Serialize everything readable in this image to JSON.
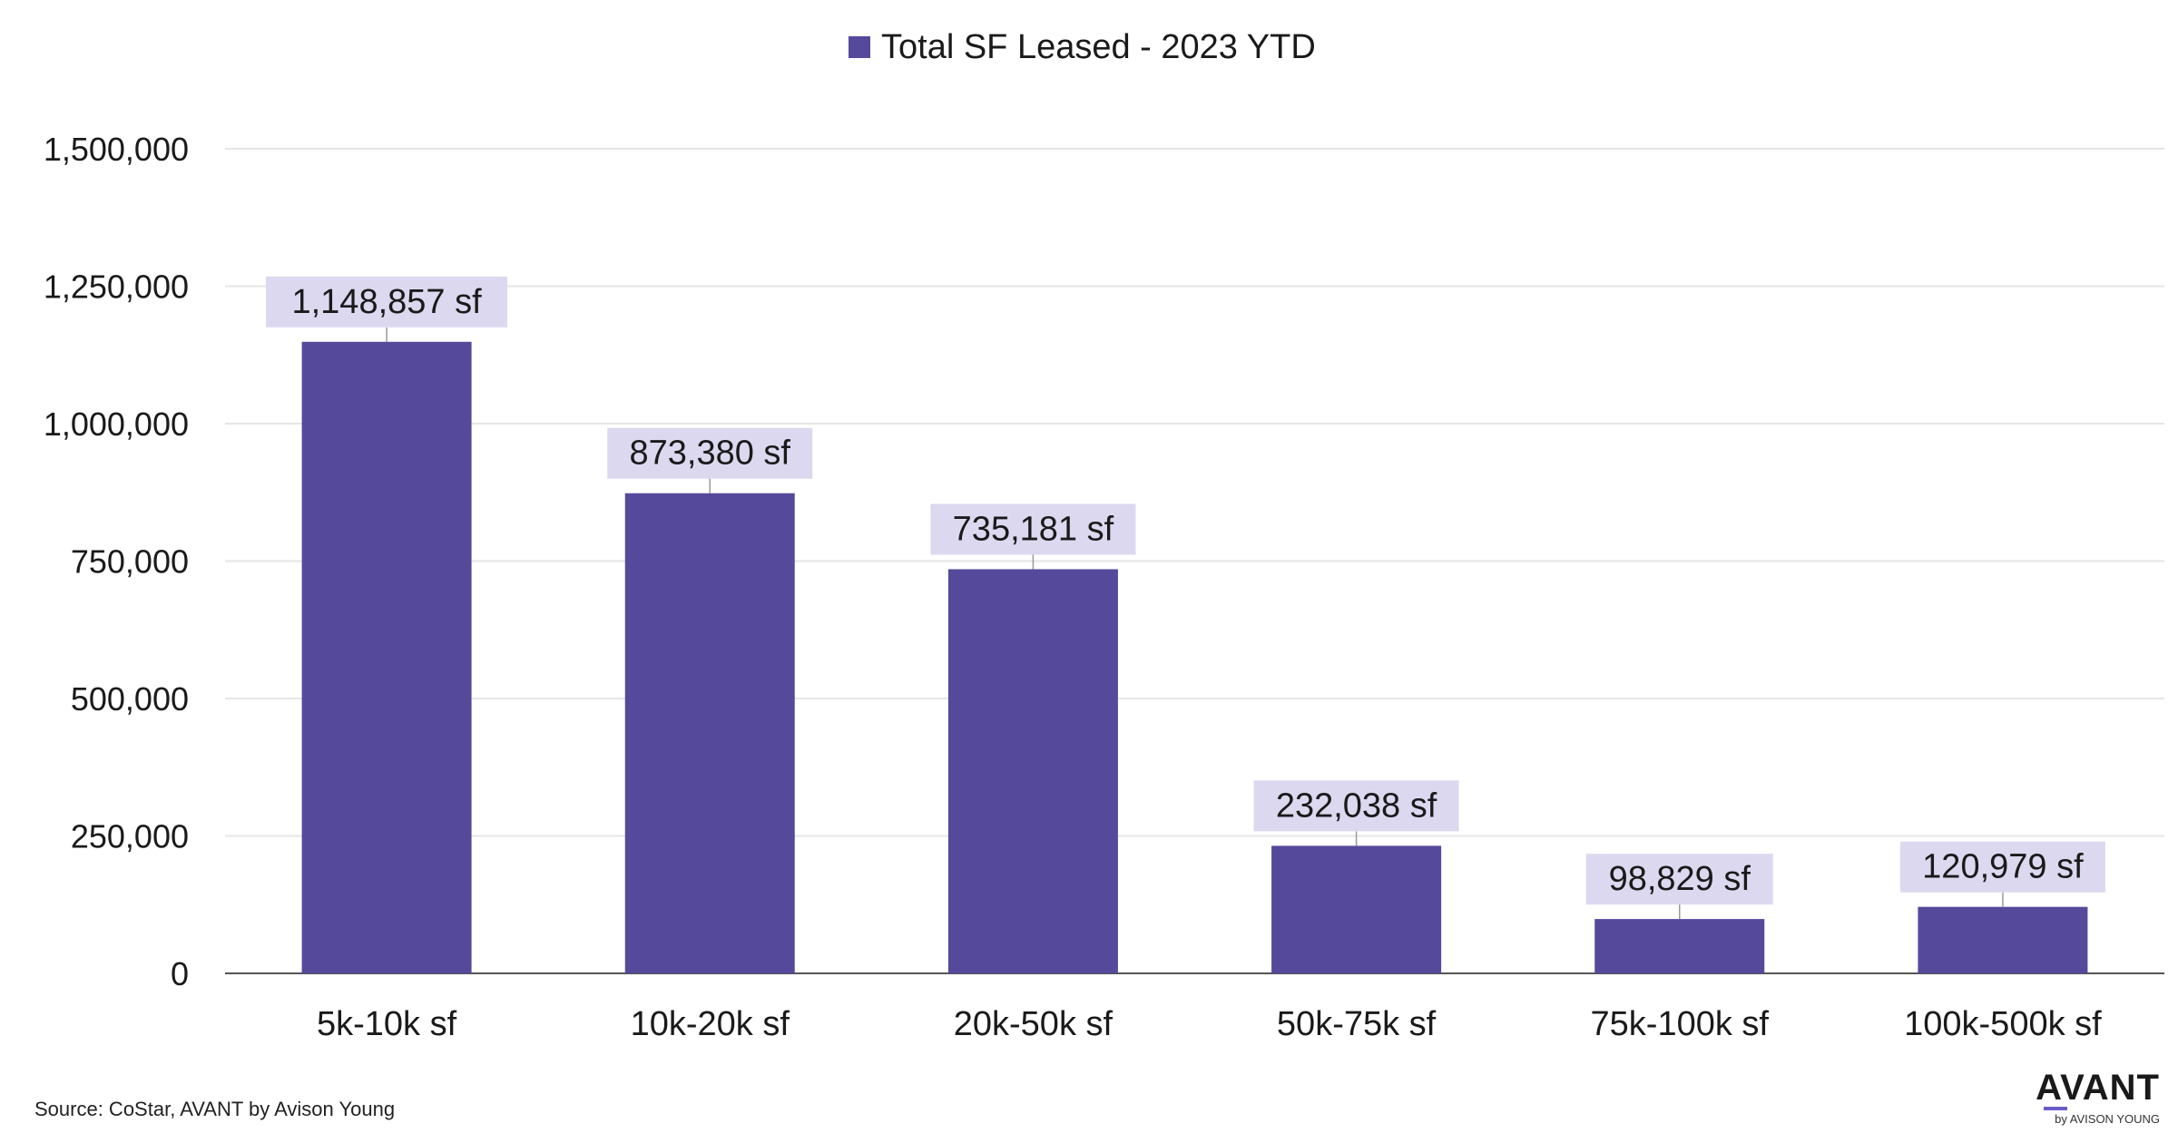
{
  "chart_data": {
    "type": "bar",
    "categories": [
      "5k-10k sf",
      "10k-20k sf",
      "20k-50k sf",
      "50k-75k sf",
      "75k-100k sf",
      "100k-500k sf"
    ],
    "series": [
      {
        "name": "Total SF Leased - 2023 YTD",
        "values": [
          1148857,
          873380,
          735181,
          232038,
          98829,
          120979
        ],
        "labels": [
          "1,148,857 sf",
          "873,380 sf",
          "735,181 sf",
          "232,038 sf",
          "98,829 sf",
          "120,979 sf"
        ],
        "color": "#55499b"
      }
    ],
    "ylim": [
      0,
      1500000
    ],
    "yticks": [
      0,
      250000,
      500000,
      750000,
      1000000,
      1250000,
      1500000
    ],
    "ytick_labels": [
      "0",
      "250,000",
      "500,000",
      "750,000",
      "1,000,000",
      "1,250,000",
      "1,500,000"
    ],
    "grid": true,
    "legend_position": "top-center",
    "label_background": "#dcd8ef",
    "gridline_color": "#e6e6e6",
    "axis_color": "#555555"
  },
  "footer": {
    "source": "Source: CoStar, AVANT by Avison Young",
    "logo_word": "AVANT",
    "logo_sub": "by AVISON YOUNG"
  }
}
